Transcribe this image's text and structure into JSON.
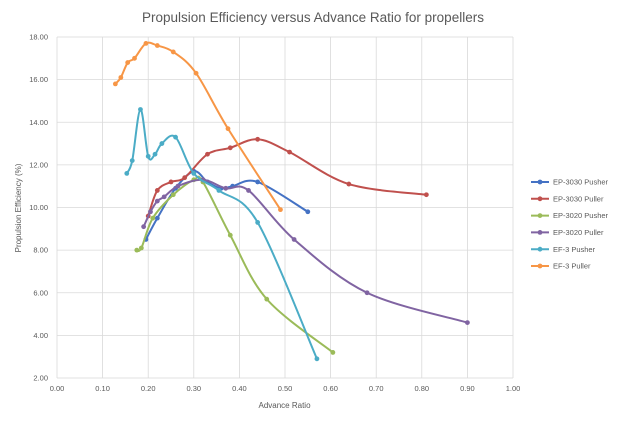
{
  "chart_data": {
    "type": "line",
    "title": "Propulsion Efficiency versus Advance Ratio for propellers",
    "xlabel": "Advance Ratio",
    "ylabel": "Propulsion Efficiency (%)",
    "xlim": [
      0,
      1
    ],
    "ylim": [
      2,
      18
    ],
    "x_ticks": [
      "0.00",
      "0.10",
      "0.20",
      "0.30",
      "0.40",
      "0.50",
      "0.60",
      "0.70",
      "0.80",
      "0.90",
      "1.00"
    ],
    "y_ticks": [
      "2.00",
      "4.00",
      "6.00",
      "8.00",
      "10.00",
      "12.00",
      "14.00",
      "16.00",
      "18.00"
    ],
    "grid": true,
    "legend_position": "right",
    "series": [
      {
        "name": "EP-3030 Pusher",
        "color": "#4472c4",
        "points": [
          [
            0.195,
            8.5
          ],
          [
            0.22,
            9.5
          ],
          [
            0.26,
            10.9
          ],
          [
            0.3,
            11.7
          ],
          [
            0.33,
            11.2
          ],
          [
            0.36,
            10.9
          ],
          [
            0.385,
            11.0
          ],
          [
            0.44,
            11.2
          ],
          [
            0.55,
            9.8
          ]
        ]
      },
      {
        "name": "EP-3030 Puller",
        "color": "#c0504d",
        "points": [
          [
            0.2,
            9.6
          ],
          [
            0.22,
            10.8
          ],
          [
            0.25,
            11.2
          ],
          [
            0.28,
            11.4
          ],
          [
            0.33,
            12.5
          ],
          [
            0.38,
            12.8
          ],
          [
            0.44,
            13.2
          ],
          [
            0.51,
            12.6
          ],
          [
            0.64,
            11.1
          ],
          [
            0.81,
            10.6
          ]
        ]
      },
      {
        "name": "EP-3020 Pusher",
        "color": "#9bbb59",
        "points": [
          [
            0.175,
            8.0
          ],
          [
            0.185,
            8.1
          ],
          [
            0.21,
            9.5
          ],
          [
            0.255,
            10.6
          ],
          [
            0.3,
            11.3
          ],
          [
            0.32,
            11.2
          ],
          [
            0.38,
            8.7
          ],
          [
            0.46,
            5.7
          ],
          [
            0.605,
            3.2
          ]
        ]
      },
      {
        "name": "EP-3020 Puller",
        "color": "#8064a2",
        "points": [
          [
            0.19,
            9.1
          ],
          [
            0.205,
            9.8
          ],
          [
            0.22,
            10.3
          ],
          [
            0.235,
            10.5
          ],
          [
            0.265,
            11.0
          ],
          [
            0.32,
            11.3
          ],
          [
            0.37,
            10.9
          ],
          [
            0.42,
            10.8
          ],
          [
            0.52,
            8.5
          ],
          [
            0.68,
            6.0
          ],
          [
            0.9,
            4.6
          ]
        ]
      },
      {
        "name": "EF-3 Pusher",
        "color": "#4bacc6",
        "points": [
          [
            0.153,
            11.6
          ],
          [
            0.165,
            12.2
          ],
          [
            0.183,
            14.6
          ],
          [
            0.2,
            12.4
          ],
          [
            0.215,
            12.5
          ],
          [
            0.23,
            13.0
          ],
          [
            0.26,
            13.3
          ],
          [
            0.3,
            11.6
          ],
          [
            0.355,
            10.8
          ],
          [
            0.44,
            9.3
          ],
          [
            0.57,
            2.9
          ]
        ]
      },
      {
        "name": "EF-3 Puller",
        "color": "#f79646",
        "points": [
          [
            0.128,
            15.8
          ],
          [
            0.14,
            16.1
          ],
          [
            0.155,
            16.8
          ],
          [
            0.17,
            17.0
          ],
          [
            0.195,
            17.7
          ],
          [
            0.22,
            17.6
          ],
          [
            0.255,
            17.3
          ],
          [
            0.305,
            16.3
          ],
          [
            0.375,
            13.7
          ],
          [
            0.49,
            9.9
          ]
        ]
      }
    ]
  }
}
